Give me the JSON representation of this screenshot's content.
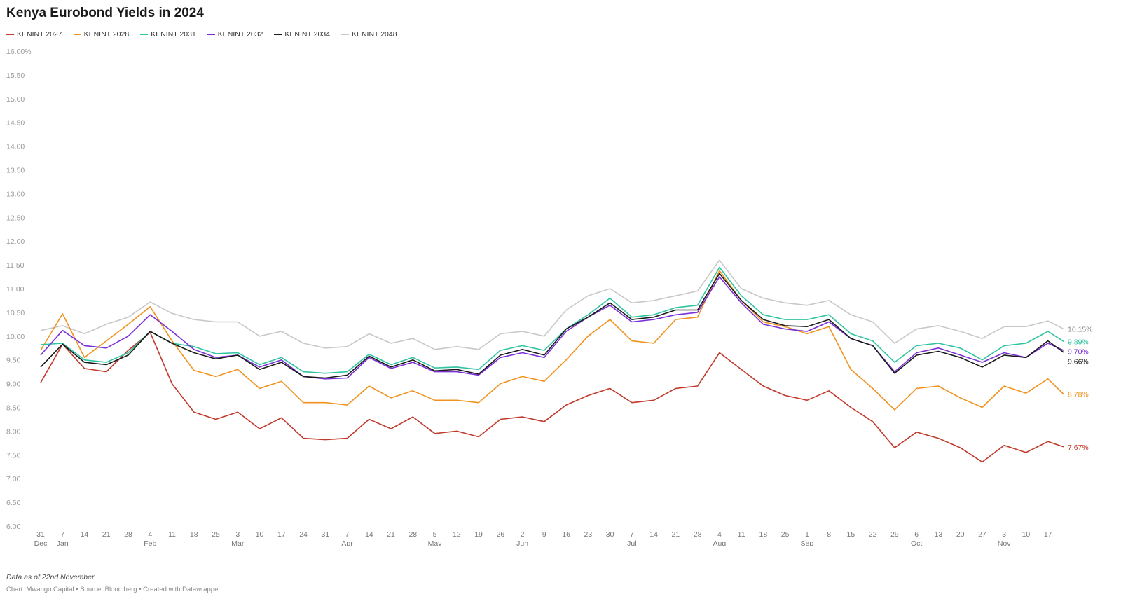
{
  "title": "Kenya Eurobond Yields in 2024",
  "note": "Data as of 22nd November.",
  "credit": "Chart: Mwango Capital • Source: Bloomberg • Created with Datawrapper",
  "chart_data": {
    "type": "line",
    "title": "Kenya Eurobond Yields in 2024",
    "xlabel": "",
    "ylabel": "",
    "ylim": [
      6.0,
      16.0
    ],
    "y_ticks": [
      6.0,
      6.5,
      7.0,
      7.5,
      8.0,
      8.5,
      9.0,
      9.5,
      10.0,
      10.5,
      11.0,
      11.5,
      12.0,
      12.5,
      13.0,
      13.5,
      14.0,
      14.5,
      15.0,
      15.5,
      16.0
    ],
    "y_tick_labels": [
      "6.00",
      "6.50",
      "7.00",
      "7.50",
      "8.00",
      "8.50",
      "9.00",
      "9.50",
      "10.00",
      "10.50",
      "11.00",
      "11.50",
      "12.00",
      "12.50",
      "13.00",
      "13.50",
      "14.00",
      "14.50",
      "15.00",
      "15.50",
      "16.00%"
    ],
    "grid": false,
    "legend_position": "top-left",
    "x_ticks": [
      {
        "date": "2023-12-31",
        "label": "31",
        "month": "Dec"
      },
      {
        "date": "2024-01-07",
        "label": "7",
        "month": "Jan"
      },
      {
        "date": "2024-01-14",
        "label": "14"
      },
      {
        "date": "2024-01-21",
        "label": "21"
      },
      {
        "date": "2024-01-28",
        "label": "28"
      },
      {
        "date": "2024-02-04",
        "label": "4",
        "month": "Feb"
      },
      {
        "date": "2024-02-11",
        "label": "11"
      },
      {
        "date": "2024-02-18",
        "label": "18"
      },
      {
        "date": "2024-02-25",
        "label": "25"
      },
      {
        "date": "2024-03-03",
        "label": "3",
        "month": "Mar"
      },
      {
        "date": "2024-03-10",
        "label": "10"
      },
      {
        "date": "2024-03-17",
        "label": "17"
      },
      {
        "date": "2024-03-24",
        "label": "24"
      },
      {
        "date": "2024-03-31",
        "label": "31"
      },
      {
        "date": "2024-04-07",
        "label": "7",
        "month": "Apr"
      },
      {
        "date": "2024-04-14",
        "label": "14"
      },
      {
        "date": "2024-04-21",
        "label": "21"
      },
      {
        "date": "2024-04-28",
        "label": "28"
      },
      {
        "date": "2024-05-05",
        "label": "5",
        "month": "May"
      },
      {
        "date": "2024-05-12",
        "label": "12"
      },
      {
        "date": "2024-05-19",
        "label": "19"
      },
      {
        "date": "2024-05-26",
        "label": "26"
      },
      {
        "date": "2024-06-02",
        "label": "2",
        "month": "Jun"
      },
      {
        "date": "2024-06-09",
        "label": "9"
      },
      {
        "date": "2024-06-16",
        "label": "16"
      },
      {
        "date": "2024-06-23",
        "label": "23"
      },
      {
        "date": "2024-06-30",
        "label": "30"
      },
      {
        "date": "2024-07-07",
        "label": "7",
        "month": "Jul"
      },
      {
        "date": "2024-07-14",
        "label": "14"
      },
      {
        "date": "2024-07-21",
        "label": "21"
      },
      {
        "date": "2024-07-28",
        "label": "28"
      },
      {
        "date": "2024-08-04",
        "label": "4",
        "month": "Aug"
      },
      {
        "date": "2024-08-11",
        "label": "11"
      },
      {
        "date": "2024-08-18",
        "label": "18"
      },
      {
        "date": "2024-08-25",
        "label": "25"
      },
      {
        "date": "2024-09-01",
        "label": "1",
        "month": "Sep"
      },
      {
        "date": "2024-09-08",
        "label": "8"
      },
      {
        "date": "2024-09-15",
        "label": "15"
      },
      {
        "date": "2024-09-22",
        "label": "22"
      },
      {
        "date": "2024-09-29",
        "label": "29"
      },
      {
        "date": "2024-10-06",
        "label": "6",
        "month": "Oct"
      },
      {
        "date": "2024-10-13",
        "label": "13"
      },
      {
        "date": "2024-10-20",
        "label": "20"
      },
      {
        "date": "2024-10-27",
        "label": "27"
      },
      {
        "date": "2024-11-03",
        "label": "3",
        "month": "Nov"
      },
      {
        "date": "2024-11-10",
        "label": "10"
      },
      {
        "date": "2024-11-17",
        "label": "17"
      }
    ],
    "x": [
      "2023-12-31",
      "2024-01-07",
      "2024-01-14",
      "2024-01-21",
      "2024-01-28",
      "2024-02-04",
      "2024-02-11",
      "2024-02-18",
      "2024-02-25",
      "2024-03-03",
      "2024-03-10",
      "2024-03-17",
      "2024-03-24",
      "2024-03-31",
      "2024-04-07",
      "2024-04-14",
      "2024-04-21",
      "2024-04-28",
      "2024-05-05",
      "2024-05-12",
      "2024-05-19",
      "2024-05-26",
      "2024-06-02",
      "2024-06-09",
      "2024-06-16",
      "2024-06-23",
      "2024-06-30",
      "2024-07-07",
      "2024-07-14",
      "2024-07-21",
      "2024-07-28",
      "2024-08-04",
      "2024-08-11",
      "2024-08-18",
      "2024-08-25",
      "2024-09-01",
      "2024-09-08",
      "2024-09-15",
      "2024-09-22",
      "2024-09-29",
      "2024-10-06",
      "2024-10-13",
      "2024-10-20",
      "2024-10-27",
      "2024-11-03",
      "2024-11-10",
      "2024-11-17",
      "2024-11-22"
    ],
    "series": [
      {
        "name": "KENINT 2027",
        "color": "#c0392b",
        "end_label": "7.67%",
        "values": [
          9.02,
          9.83,
          9.32,
          9.25,
          9.7,
          10.08,
          9.0,
          8.4,
          8.25,
          8.4,
          8.05,
          8.28,
          7.85,
          7.82,
          7.85,
          8.25,
          8.05,
          8.3,
          7.95,
          8.0,
          7.88,
          8.25,
          8.3,
          8.2,
          8.55,
          8.75,
          8.9,
          8.6,
          8.65,
          8.9,
          8.95,
          9.65,
          9.3,
          8.95,
          8.75,
          8.65,
          8.85,
          8.5,
          8.2,
          7.65,
          7.98,
          7.85,
          7.65,
          7.35,
          7.7,
          7.55,
          7.78,
          7.67
        ]
      },
      {
        "name": "KENINT 2028",
        "color": "#f0931e",
        "end_label": "8.78%",
        "values": [
          9.7,
          10.47,
          9.55,
          9.9,
          10.25,
          10.62,
          9.9,
          9.28,
          9.15,
          9.3,
          8.9,
          9.05,
          8.6,
          8.6,
          8.55,
          8.95,
          8.7,
          8.85,
          8.65,
          8.65,
          8.6,
          9.0,
          9.15,
          9.05,
          9.5,
          10.0,
          10.35,
          9.9,
          9.85,
          10.35,
          10.4,
          11.38,
          10.75,
          10.3,
          10.2,
          10.05,
          10.2,
          9.3,
          8.9,
          8.45,
          8.9,
          8.95,
          8.7,
          8.5,
          8.95,
          8.8,
          9.1,
          8.78
        ]
      },
      {
        "name": "KENINT 2031",
        "color": "#2ec4a0",
        "end_label": "9.89%",
        "values": [
          9.82,
          9.85,
          9.5,
          9.45,
          9.65,
          10.1,
          9.85,
          9.78,
          9.63,
          9.65,
          9.4,
          9.55,
          9.25,
          9.22,
          9.25,
          9.62,
          9.4,
          9.55,
          9.33,
          9.35,
          9.3,
          9.7,
          9.8,
          9.7,
          10.15,
          10.45,
          10.8,
          10.4,
          10.45,
          10.6,
          10.65,
          11.45,
          10.85,
          10.45,
          10.35,
          10.35,
          10.45,
          10.05,
          9.9,
          9.45,
          9.8,
          9.85,
          9.75,
          9.5,
          9.8,
          9.85,
          10.1,
          9.89
        ]
      },
      {
        "name": "KENINT 2032",
        "color": "#7b2fd6",
        "end_label": "9.70%",
        "values": [
          9.6,
          10.12,
          9.8,
          9.75,
          10.0,
          10.45,
          10.1,
          9.72,
          9.55,
          9.6,
          9.35,
          9.5,
          9.15,
          9.1,
          9.12,
          9.55,
          9.32,
          9.45,
          9.25,
          9.25,
          9.18,
          9.55,
          9.65,
          9.55,
          10.1,
          10.4,
          10.65,
          10.3,
          10.35,
          10.45,
          10.5,
          11.25,
          10.7,
          10.25,
          10.15,
          10.1,
          10.3,
          9.95,
          9.8,
          9.25,
          9.65,
          9.75,
          9.6,
          9.45,
          9.65,
          9.55,
          9.85,
          9.7
        ]
      },
      {
        "name": "KENINT 2034",
        "color": "#1a1a1a",
        "end_label": "9.66%",
        "values": [
          9.35,
          9.83,
          9.45,
          9.4,
          9.6,
          10.1,
          9.85,
          9.65,
          9.52,
          9.6,
          9.3,
          9.45,
          9.15,
          9.12,
          9.18,
          9.58,
          9.35,
          9.5,
          9.27,
          9.3,
          9.2,
          9.6,
          9.72,
          9.6,
          10.15,
          10.4,
          10.7,
          10.35,
          10.4,
          10.55,
          10.55,
          11.32,
          10.75,
          10.35,
          10.22,
          10.2,
          10.35,
          9.95,
          9.8,
          9.22,
          9.6,
          9.68,
          9.55,
          9.35,
          9.6,
          9.55,
          9.9,
          9.66
        ]
      },
      {
        "name": "KENINT 2048",
        "color": "#c8c8c8",
        "end_label": "10.15%",
        "values": [
          10.12,
          10.22,
          10.05,
          10.25,
          10.4,
          10.72,
          10.48,
          10.35,
          10.3,
          10.3,
          10.0,
          10.1,
          9.85,
          9.75,
          9.78,
          10.05,
          9.85,
          9.95,
          9.72,
          9.78,
          9.72,
          10.05,
          10.1,
          10.0,
          10.55,
          10.85,
          11.0,
          10.7,
          10.75,
          10.85,
          10.95,
          11.6,
          11.0,
          10.8,
          10.7,
          10.65,
          10.75,
          10.45,
          10.3,
          9.85,
          10.15,
          10.22,
          10.1,
          9.95,
          10.2,
          10.2,
          10.32,
          10.15
        ]
      }
    ]
  }
}
